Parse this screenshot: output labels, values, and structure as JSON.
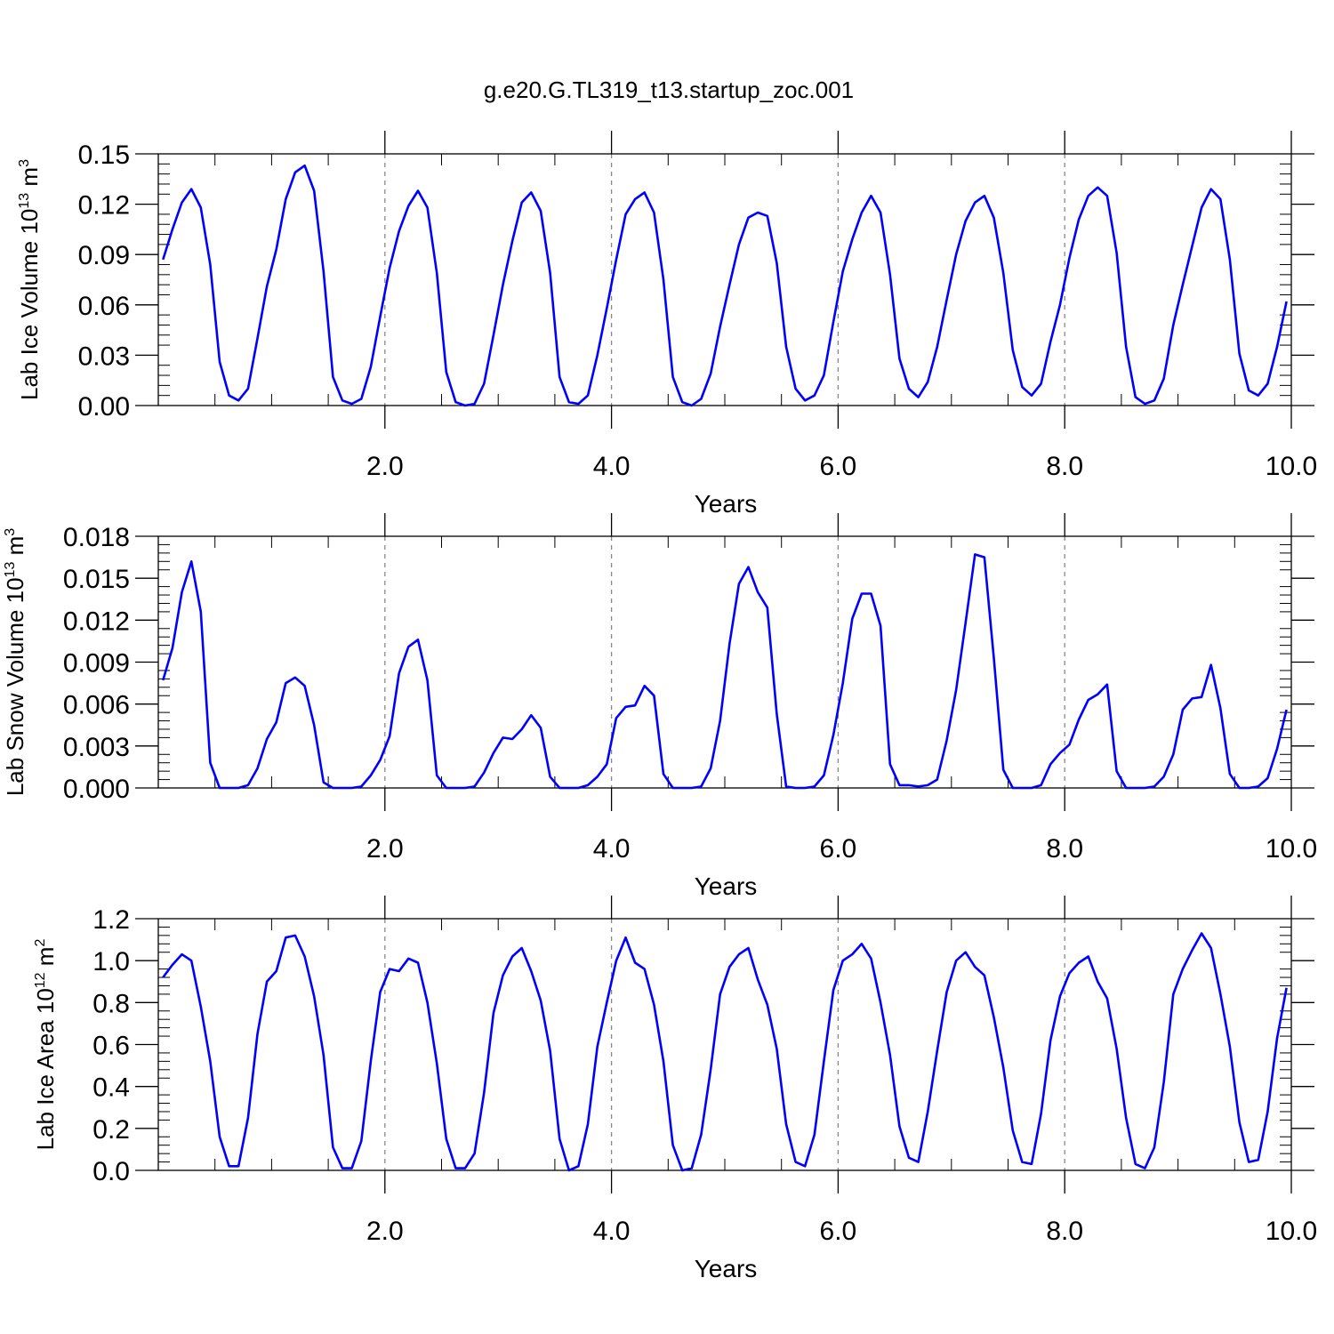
{
  "title": "g.e20.G.TL319_t13.startup_zoc.001",
  "colors": {
    "series": "#0000ff",
    "axis": "#000000",
    "refline": "#888888"
  },
  "chart_data": [
    {
      "type": "line",
      "title": "g.e20.G.TL319_t13.startup_zoc.001",
      "xlabel": "Years",
      "ylabel": "Lab Ice Volume 10",
      "ylabel_sup": "13",
      "ylabel_unit": " m",
      "ylabel_unit_sup": "3",
      "xlim": [
        0.0,
        10.0
      ],
      "ylim": [
        0.0,
        0.15
      ],
      "yticks": [
        "0.00",
        "0.03",
        "0.06",
        "0.09",
        "0.12",
        "0.15"
      ],
      "xticks": [
        "2.0",
        "4.0",
        "6.0",
        "8.0",
        "10.0"
      ],
      "x_start": 0.0417,
      "x_step": 0.08333,
      "series": [
        {
          "values": [
            0.087,
            0.105,
            0.121,
            0.129,
            0.118,
            0.084,
            0.026,
            0.006,
            0.003,
            0.01,
            0.04,
            0.071,
            0.093,
            0.123,
            0.139,
            0.143,
            0.128,
            0.08,
            0.017,
            0.003,
            0.001,
            0.004,
            0.023,
            0.053,
            0.082,
            0.104,
            0.119,
            0.128,
            0.118,
            0.079,
            0.02,
            0.002,
            0.0,
            0.001,
            0.013,
            0.042,
            0.072,
            0.098,
            0.121,
            0.127,
            0.116,
            0.079,
            0.017,
            0.002,
            0.001,
            0.006,
            0.03,
            0.058,
            0.087,
            0.114,
            0.123,
            0.127,
            0.115,
            0.075,
            0.017,
            0.002,
            0.0,
            0.004,
            0.019,
            0.047,
            0.072,
            0.096,
            0.112,
            0.115,
            0.113,
            0.085,
            0.035,
            0.01,
            0.003,
            0.006,
            0.018,
            0.05,
            0.08,
            0.099,
            0.115,
            0.125,
            0.115,
            0.078,
            0.028,
            0.01,
            0.005,
            0.014,
            0.035,
            0.063,
            0.09,
            0.11,
            0.121,
            0.125,
            0.112,
            0.079,
            0.033,
            0.011,
            0.006,
            0.013,
            0.038,
            0.06,
            0.088,
            0.111,
            0.125,
            0.13,
            0.125,
            0.091,
            0.035,
            0.005,
            0.001,
            0.003,
            0.016,
            0.048,
            0.072,
            0.095,
            0.118,
            0.129,
            0.123,
            0.087,
            0.031,
            0.009,
            0.006,
            0.013,
            0.035,
            0.062
          ]
        }
      ]
    },
    {
      "type": "line",
      "xlabel": "Years",
      "ylabel": "Lab Snow Volume 10",
      "ylabel_sup": "13",
      "ylabel_unit": " m",
      "ylabel_unit_sup": "3",
      "xlim": [
        0.0,
        10.0
      ],
      "ylim": [
        0.0,
        0.018
      ],
      "yticks": [
        "0.000",
        "0.003",
        "0.006",
        "0.009",
        "0.012",
        "0.015",
        "0.018"
      ],
      "xticks": [
        "2.0",
        "4.0",
        "6.0",
        "8.0",
        "10.0"
      ],
      "x_start": 0.0417,
      "x_step": 0.08333,
      "series": [
        {
          "values": [
            0.0077,
            0.01,
            0.014,
            0.0162,
            0.0126,
            0.0018,
            0.0,
            0.0,
            0.0,
            0.0002,
            0.0014,
            0.0035,
            0.0047,
            0.0075,
            0.0079,
            0.0073,
            0.0045,
            0.0004,
            0.0,
            0.0,
            0.0,
            0.0001,
            0.0009,
            0.002,
            0.0037,
            0.0082,
            0.0101,
            0.0106,
            0.0077,
            0.0009,
            0.0,
            0.0,
            0.0,
            0.0001,
            0.0011,
            0.0025,
            0.0036,
            0.0035,
            0.0042,
            0.0052,
            0.0043,
            0.0008,
            0.0,
            0.0,
            0.0,
            0.0002,
            0.0008,
            0.0017,
            0.005,
            0.0058,
            0.0059,
            0.0073,
            0.0066,
            0.001,
            0.0,
            0.0,
            0.0,
            0.0001,
            0.0014,
            0.0048,
            0.0103,
            0.0146,
            0.0158,
            0.014,
            0.0129,
            0.0053,
            0.0001,
            0.0,
            0.0,
            0.0001,
            0.0009,
            0.0038,
            0.0075,
            0.0121,
            0.0139,
            0.0139,
            0.0116,
            0.0017,
            0.0002,
            0.0002,
            0.0001,
            0.0002,
            0.0006,
            0.0034,
            0.007,
            0.0118,
            0.0167,
            0.0165,
            0.0093,
            0.0013,
            0.0,
            0.0,
            0.0,
            0.0002,
            0.0017,
            0.0025,
            0.0031,
            0.0049,
            0.0063,
            0.0067,
            0.0074,
            0.0012,
            0.0,
            0.0,
            0.0,
            0.0001,
            0.0008,
            0.0024,
            0.0056,
            0.0064,
            0.0065,
            0.0088,
            0.0057,
            0.001,
            0.0,
            0.0,
            0.0001,
            0.0007,
            0.0028,
            0.0056
          ]
        }
      ]
    },
    {
      "type": "line",
      "xlabel": "Years",
      "ylabel": "Lab Ice Area 10",
      "ylabel_sup": "12",
      "ylabel_unit": " m",
      "ylabel_unit_sup": "2",
      "xlim": [
        0.0,
        10.0
      ],
      "ylim": [
        0.0,
        1.2
      ],
      "yticks": [
        "0.0",
        "0.2",
        "0.4",
        "0.6",
        "0.8",
        "1.0",
        "1.2"
      ],
      "xticks": [
        "2.0",
        "4.0",
        "6.0",
        "8.0",
        "10.0"
      ],
      "x_start": 0.0417,
      "x_step": 0.08333,
      "series": [
        {
          "values": [
            0.92,
            0.98,
            1.03,
            1.0,
            0.78,
            0.52,
            0.16,
            0.02,
            0.02,
            0.25,
            0.65,
            0.9,
            0.95,
            1.11,
            1.12,
            1.02,
            0.83,
            0.55,
            0.11,
            0.01,
            0.01,
            0.14,
            0.52,
            0.85,
            0.96,
            0.95,
            1.01,
            0.99,
            0.8,
            0.51,
            0.15,
            0.01,
            0.01,
            0.08,
            0.37,
            0.75,
            0.93,
            1.02,
            1.06,
            0.95,
            0.81,
            0.57,
            0.15,
            0.0,
            0.02,
            0.22,
            0.59,
            0.8,
            1.0,
            1.11,
            0.99,
            0.96,
            0.79,
            0.52,
            0.12,
            0.0,
            0.01,
            0.17,
            0.48,
            0.84,
            0.97,
            1.03,
            1.06,
            0.91,
            0.79,
            0.58,
            0.22,
            0.04,
            0.02,
            0.17,
            0.52,
            0.86,
            1.0,
            1.03,
            1.08,
            1.01,
            0.8,
            0.55,
            0.21,
            0.06,
            0.04,
            0.28,
            0.57,
            0.85,
            1.0,
            1.04,
            0.97,
            0.93,
            0.73,
            0.49,
            0.19,
            0.04,
            0.03,
            0.27,
            0.62,
            0.83,
            0.94,
            0.99,
            1.02,
            0.9,
            0.82,
            0.58,
            0.25,
            0.03,
            0.01,
            0.11,
            0.42,
            0.84,
            0.96,
            1.05,
            1.13,
            1.06,
            0.84,
            0.59,
            0.23,
            0.04,
            0.05,
            0.28,
            0.63,
            0.87
          ]
        }
      ]
    }
  ]
}
